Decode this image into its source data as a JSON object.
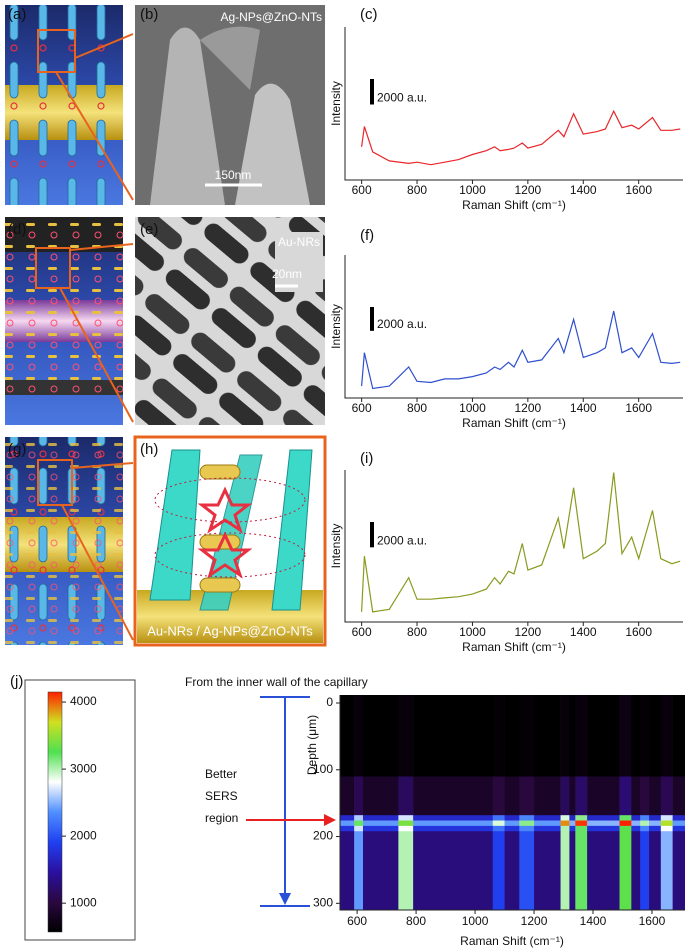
{
  "panel_labels": [
    "(a)",
    "(b)",
    "(c)",
    "(d)",
    "(e)",
    "(f)",
    "(g)",
    "(h)",
    "(i)",
    "(j)"
  ],
  "images": {
    "b": {
      "caption": "Ag-NPs@ZnO-NTs",
      "scale_bar": "150nm"
    },
    "e": {
      "caption": "Au-NRs",
      "scale_bar": "20nm"
    },
    "h": {
      "caption": "Au-NRs / Ag-NPs@ZnO-NTs"
    }
  },
  "chart_data": [
    {
      "type": "line",
      "x_label": "Raman Shift (cm⁻¹)",
      "y_label": "Intensity",
      "color": "#e8262b",
      "x": [
        600,
        610,
        640,
        700,
        770,
        800,
        850,
        900,
        950,
        1000,
        1050,
        1080,
        1100,
        1130,
        1150,
        1180,
        1200,
        1250,
        1310,
        1330,
        1365,
        1400,
        1450,
        1480,
        1510,
        1540,
        1575,
        1600,
        1650,
        1680,
        1720,
        1750
      ],
      "values": [
        2600,
        4200,
        2200,
        1500,
        1300,
        1400,
        1200,
        1400,
        1600,
        2000,
        2300,
        2600,
        2300,
        2400,
        2500,
        2900,
        2500,
        2800,
        3900,
        3400,
        5200,
        3600,
        3800,
        4000,
        5400,
        4100,
        4300,
        4000,
        4900,
        3900,
        3900,
        4000
      ],
      "xlim": [
        540,
        1760
      ],
      "xticks": [
        600,
        800,
        1000,
        1200,
        1400,
        1600
      ],
      "ylim": [
        0,
        12000
      ],
      "scale_bar": {
        "value": 2000,
        "label": "2000 a.u."
      }
    },
    {
      "type": "line",
      "x_label": "Raman Shift (cm⁻¹)",
      "y_label": "Intensity",
      "color": "#2f4fcf",
      "x": [
        600,
        610,
        640,
        700,
        770,
        800,
        850,
        900,
        950,
        1000,
        1050,
        1080,
        1100,
        1130,
        1150,
        1180,
        1200,
        1250,
        1310,
        1330,
        1365,
        1400,
        1450,
        1480,
        1510,
        1540,
        1575,
        1600,
        1650,
        1680,
        1720,
        1750
      ],
      "values": [
        1000,
        3800,
        800,
        1000,
        2600,
        1400,
        1300,
        1600,
        1600,
        1800,
        2100,
        2600,
        2400,
        3000,
        2600,
        4000,
        3000,
        3200,
        5000,
        3800,
        6600,
        3400,
        3800,
        4200,
        7300,
        3800,
        4200,
        3400,
        5400,
        3000,
        2900,
        3000
      ],
      "xlim": [
        540,
        1760
      ],
      "xticks": [
        600,
        800,
        1000,
        1200,
        1400,
        1600
      ],
      "ylim": [
        0,
        12000
      ],
      "scale_bar": {
        "value": 2000,
        "label": "2000 a.u."
      }
    },
    {
      "type": "line",
      "x_label": "Raman Shift (cm⁻¹)",
      "y_label": "Intensity",
      "color": "#8a9a1e",
      "x": [
        600,
        610,
        640,
        700,
        770,
        800,
        850,
        900,
        950,
        1000,
        1050,
        1080,
        1100,
        1130,
        1150,
        1180,
        1200,
        1250,
        1310,
        1330,
        1365,
        1400,
        1450,
        1480,
        1510,
        1540,
        1575,
        1600,
        1650,
        1680,
        1720,
        1750
      ],
      "values": [
        800,
        5200,
        800,
        1000,
        3500,
        1800,
        1800,
        1900,
        2000,
        2200,
        2600,
        3500,
        3000,
        4000,
        3800,
        6200,
        4100,
        4500,
        8200,
        5800,
        10600,
        5000,
        5600,
        6200,
        11800,
        5400,
        6700,
        5000,
        8800,
        5000,
        4600,
        4800
      ],
      "xlim": [
        540,
        1760
      ],
      "xticks": [
        600,
        800,
        1000,
        1200,
        1400,
        1600
      ],
      "ylim": [
        0,
        12000
      ],
      "scale_bar": {
        "value": 2000,
        "label": "2000 a.u."
      }
    },
    {
      "type": "heatmap",
      "x_label": "Raman Shift (cm⁻¹)",
      "y_label": "Depth (μm)",
      "annotations": [
        "From the inner wall of the capillary",
        "Better",
        "SERS",
        "region"
      ],
      "xbins": [
        542,
        590,
        620,
        740,
        790,
        1060,
        1100,
        1150,
        1200,
        1290,
        1320,
        1340,
        1380,
        1490,
        1530,
        1560,
        1590,
        1630,
        1670,
        1712
      ],
      "ybins": [
        -12,
        110,
        168,
        176,
        184,
        192,
        310
      ],
      "values": [
        [
          500,
          650,
          500,
          650,
          500,
          600,
          500,
          600,
          500,
          650,
          500,
          650,
          500,
          700,
          500,
          600,
          500,
          650,
          500
        ],
        [
          850,
          1100,
          850,
          1150,
          850,
          1000,
          850,
          1000,
          850,
          1150,
          850,
          1200,
          850,
          1250,
          850,
          1000,
          850,
          1100,
          850
        ],
        [
          1700,
          2600,
          1700,
          2700,
          1700,
          2200,
          1700,
          2300,
          1700,
          2900,
          1700,
          3100,
          1700,
          3200,
          1700,
          2300,
          1700,
          2700,
          1700
        ],
        [
          2400,
          3200,
          2400,
          3400,
          2400,
          2900,
          2400,
          3100,
          2400,
          3900,
          2500,
          4100,
          2500,
          4200,
          2500,
          3000,
          2500,
          3600,
          2400
        ],
        [
          1800,
          2700,
          1800,
          2800,
          1800,
          2200,
          1800,
          2300,
          1800,
          3000,
          1800,
          3200,
          1800,
          3300,
          1800,
          2300,
          1800,
          2800,
          1800
        ],
        [
          1300,
          2400,
          1300,
          3000,
          1300,
          1900,
          1300,
          2000,
          1300,
          3000,
          1300,
          3200,
          1300,
          3300,
          1300,
          1900,
          1300,
          2500,
          1300
        ]
      ],
      "xlim": [
        542,
        1712
      ],
      "xticks": [
        600,
        800,
        1000,
        1200,
        1400,
        1600
      ],
      "ylim": [
        -12,
        310
      ],
      "yticks": [
        0,
        100,
        200,
        300
      ],
      "clim": [
        570,
        4150
      ],
      "colorbar_ticks": [
        1000,
        2000,
        3000,
        4000
      ],
      "colormap": [
        "#000000",
        "#2a0840",
        "#2a10a0",
        "#2040f0",
        "#5090ff",
        "#ffffff",
        "#50e050",
        "#d0e020",
        "#ff2000"
      ]
    }
  ]
}
